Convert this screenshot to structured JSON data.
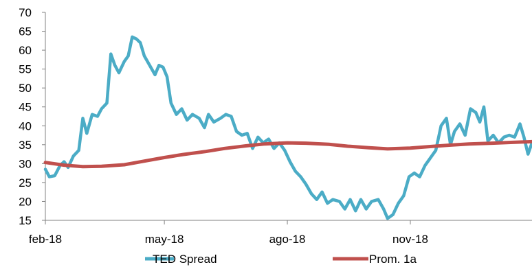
{
  "chart_data": {
    "type": "line",
    "title": "",
    "xlabel": "",
    "ylabel": "",
    "ylim": [
      15,
      70
    ],
    "y_ticks": [
      15,
      20,
      25,
      30,
      35,
      40,
      45,
      50,
      55,
      60,
      65,
      70
    ],
    "x_range": [
      "2018-02-01",
      "2019-01-31"
    ],
    "x_tick_labels": [
      {
        "date": "2018-02-01",
        "label": "feb-18"
      },
      {
        "date": "2018-05-01",
        "label": "may-18"
      },
      {
        "date": "2018-08-01",
        "label": "ago-18"
      },
      {
        "date": "2018-11-01",
        "label": "nov-18"
      }
    ],
    "grid": false,
    "legend_position": "bottom",
    "series": [
      {
        "name": "TED Spread",
        "color": "#4bacc6",
        "points": [
          [
            "2018-02-01",
            28.5
          ],
          [
            "2018-02-04",
            26.5
          ],
          [
            "2018-02-08",
            26.8
          ],
          [
            "2018-02-12",
            29.5
          ],
          [
            "2018-02-15",
            30.5
          ],
          [
            "2018-02-18",
            29.0
          ],
          [
            "2018-02-22",
            32.0
          ],
          [
            "2018-02-26",
            33.5
          ],
          [
            "2018-03-01",
            42.0
          ],
          [
            "2018-03-04",
            38.0
          ],
          [
            "2018-03-08",
            43.0
          ],
          [
            "2018-03-12",
            42.5
          ],
          [
            "2018-03-15",
            44.5
          ],
          [
            "2018-03-19",
            46.0
          ],
          [
            "2018-03-22",
            59.0
          ],
          [
            "2018-03-25",
            56.0
          ],
          [
            "2018-03-28",
            54.0
          ],
          [
            "2018-04-01",
            57.0
          ],
          [
            "2018-04-04",
            58.5
          ],
          [
            "2018-04-07",
            63.5
          ],
          [
            "2018-04-10",
            63.0
          ],
          [
            "2018-04-13",
            62.0
          ],
          [
            "2018-04-16",
            58.5
          ],
          [
            "2018-04-20",
            56.0
          ],
          [
            "2018-04-24",
            53.5
          ],
          [
            "2018-04-27",
            56.0
          ],
          [
            "2018-04-30",
            55.5
          ],
          [
            "2018-05-03",
            53.0
          ],
          [
            "2018-05-06",
            46.0
          ],
          [
            "2018-05-10",
            43.0
          ],
          [
            "2018-05-14",
            44.5
          ],
          [
            "2018-05-18",
            41.5
          ],
          [
            "2018-05-22",
            43.0
          ],
          [
            "2018-05-27",
            42.0
          ],
          [
            "2018-05-31",
            39.5
          ],
          [
            "2018-06-03",
            43.0
          ],
          [
            "2018-06-07",
            41.0
          ],
          [
            "2018-06-12",
            42.0
          ],
          [
            "2018-06-16",
            43.0
          ],
          [
            "2018-06-20",
            42.5
          ],
          [
            "2018-06-24",
            38.5
          ],
          [
            "2018-06-28",
            37.5
          ],
          [
            "2018-07-02",
            38.0
          ],
          [
            "2018-07-06",
            34.0
          ],
          [
            "2018-07-10",
            37.0
          ],
          [
            "2018-07-14",
            35.5
          ],
          [
            "2018-07-18",
            36.5
          ],
          [
            "2018-07-22",
            34.0
          ],
          [
            "2018-07-26",
            35.5
          ],
          [
            "2018-07-30",
            33.5
          ],
          [
            "2018-08-03",
            30.5
          ],
          [
            "2018-08-07",
            28.0
          ],
          [
            "2018-08-11",
            26.5
          ],
          [
            "2018-08-15",
            24.5
          ],
          [
            "2018-08-19",
            22.0
          ],
          [
            "2018-08-23",
            20.5
          ],
          [
            "2018-08-27",
            22.5
          ],
          [
            "2018-08-31",
            19.5
          ],
          [
            "2018-09-04",
            20.5
          ],
          [
            "2018-09-09",
            20.0
          ],
          [
            "2018-09-13",
            18.0
          ],
          [
            "2018-09-17",
            20.5
          ],
          [
            "2018-09-21",
            17.5
          ],
          [
            "2018-09-25",
            20.5
          ],
          [
            "2018-09-29",
            18.0
          ],
          [
            "2018-10-03",
            20.0
          ],
          [
            "2018-10-08",
            20.5
          ],
          [
            "2018-10-12",
            18.0
          ],
          [
            "2018-10-15",
            15.5
          ],
          [
            "2018-10-19",
            16.5
          ],
          [
            "2018-10-23",
            19.5
          ],
          [
            "2018-10-27",
            21.5
          ],
          [
            "2018-10-31",
            26.5
          ],
          [
            "2018-11-04",
            27.5
          ],
          [
            "2018-11-08",
            26.5
          ],
          [
            "2018-11-12",
            29.5
          ],
          [
            "2018-11-16",
            31.5
          ],
          [
            "2018-11-20",
            33.5
          ],
          [
            "2018-11-24",
            40.0
          ],
          [
            "2018-11-28",
            42.0
          ],
          [
            "2018-12-01",
            35.0
          ],
          [
            "2018-12-04",
            38.5
          ],
          [
            "2018-12-08",
            40.5
          ],
          [
            "2018-12-12",
            37.5
          ],
          [
            "2018-12-16",
            44.5
          ],
          [
            "2018-12-20",
            43.5
          ],
          [
            "2018-12-23",
            41.0
          ],
          [
            "2018-12-26",
            45.0
          ],
          [
            "2018-12-29",
            36.0
          ],
          [
            "2019-01-02",
            37.5
          ],
          [
            "2019-01-06",
            35.5
          ],
          [
            "2019-01-10",
            37.0
          ],
          [
            "2019-01-14",
            37.5
          ],
          [
            "2019-01-18",
            37.0
          ],
          [
            "2019-01-22",
            40.5
          ],
          [
            "2019-01-25",
            37.0
          ],
          [
            "2019-01-28",
            32.5
          ],
          [
            "2019-01-31",
            35.5
          ]
        ]
      },
      {
        "name": "Prom. 1a",
        "color": "#c0504d",
        "points": [
          [
            "2018-02-01",
            30.3
          ],
          [
            "2018-02-15",
            29.6
          ],
          [
            "2018-03-01",
            29.2
          ],
          [
            "2018-03-15",
            29.3
          ],
          [
            "2018-04-01",
            29.7
          ],
          [
            "2018-04-15",
            30.6
          ],
          [
            "2018-05-01",
            31.6
          ],
          [
            "2018-05-15",
            32.4
          ],
          [
            "2018-06-01",
            33.2
          ],
          [
            "2018-06-15",
            34.0
          ],
          [
            "2018-07-01",
            34.7
          ],
          [
            "2018-07-15",
            35.2
          ],
          [
            "2018-08-01",
            35.5
          ],
          [
            "2018-08-15",
            35.4
          ],
          [
            "2018-09-01",
            35.1
          ],
          [
            "2018-09-15",
            34.6
          ],
          [
            "2018-10-01",
            34.2
          ],
          [
            "2018-10-15",
            33.9
          ],
          [
            "2018-11-01",
            34.1
          ],
          [
            "2018-11-15",
            34.5
          ],
          [
            "2018-12-01",
            34.9
          ],
          [
            "2018-12-15",
            35.2
          ],
          [
            "2019-01-01",
            35.4
          ],
          [
            "2019-01-15",
            35.6
          ],
          [
            "2019-01-31",
            35.8
          ]
        ]
      }
    ]
  }
}
